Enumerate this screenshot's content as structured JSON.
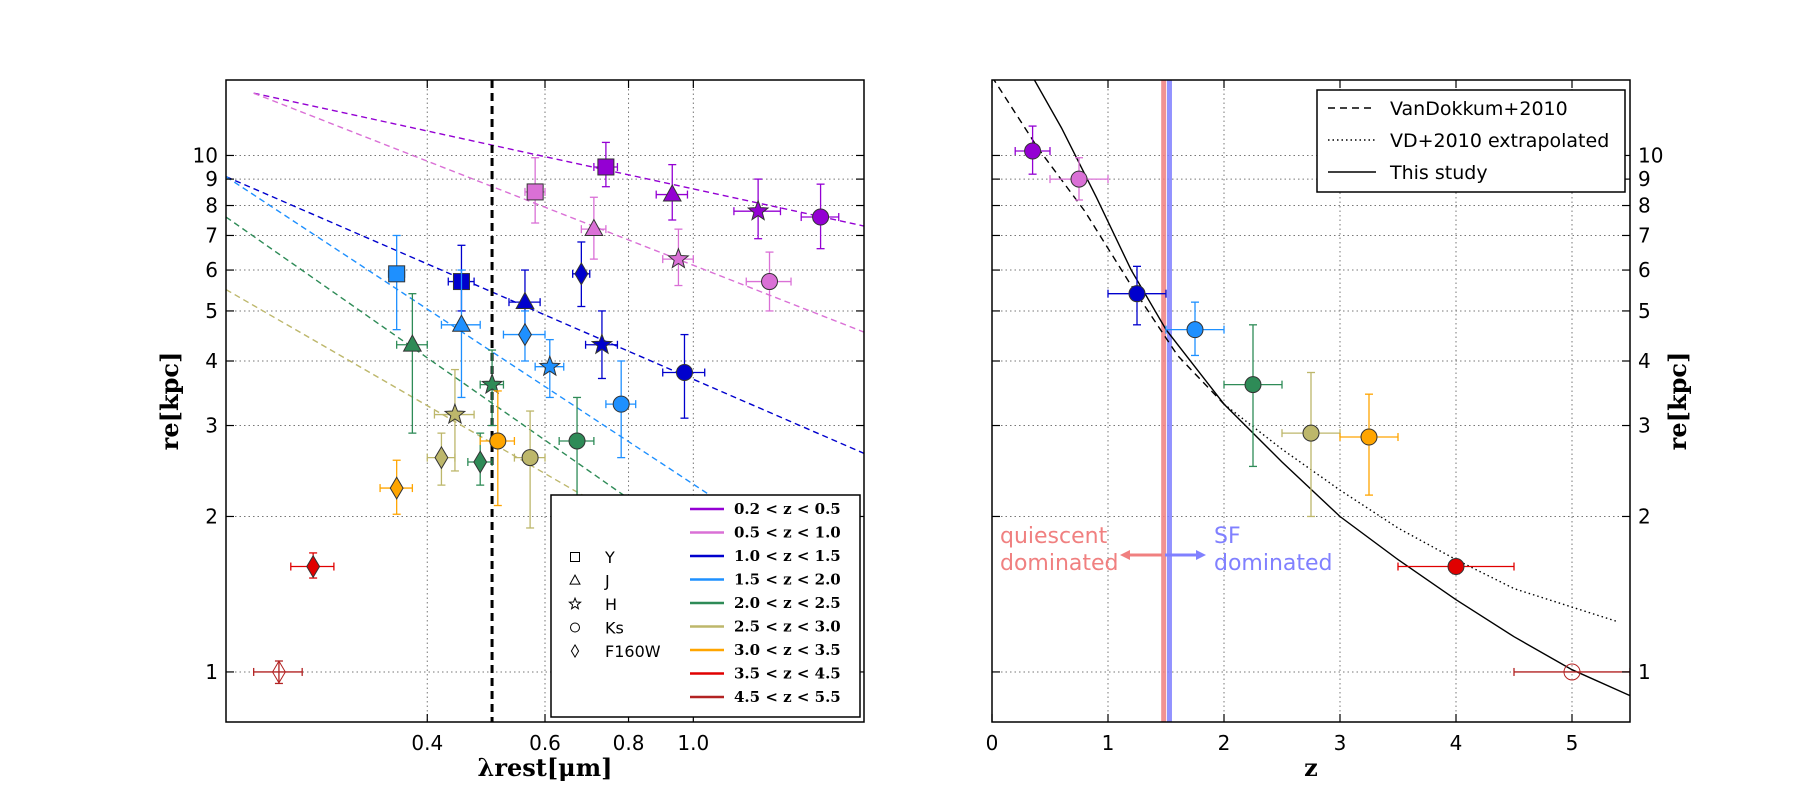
{
  "chart_data": [
    {
      "type": "scatter",
      "xlabel": "λrest[μm]",
      "ylabel": "re[kpc]",
      "xscale": "log",
      "yscale": "log",
      "xlim": [
        0.2,
        1.8
      ],
      "ylim": [
        0.8,
        14
      ],
      "xticks": [
        0.4,
        0.6,
        0.8,
        1.0
      ],
      "xtick_labels": [
        "0.4",
        "0.6",
        "0.8",
        "1.0"
      ],
      "yticks": [
        1,
        2,
        3,
        4,
        5,
        6,
        7,
        8,
        9,
        10
      ],
      "ytick_labels": [
        "1",
        "2",
        "3",
        "4",
        "5",
        "6",
        "7",
        "8",
        "9",
        "10"
      ],
      "grid": true,
      "vline": {
        "x": 0.5,
        "style": "dashed",
        "color": "#000000"
      },
      "bin_legend": {
        "placement": "lower-right",
        "entries": [
          {
            "label": "0.2 < z < 0.5",
            "color": "#9400d3"
          },
          {
            "label": "0.5 < z < 1.0",
            "color": "#da70d6"
          },
          {
            "label": "1.0 < z < 1.5",
            "color": "#0000cd"
          },
          {
            "label": "1.5 < z < 2.0",
            "color": "#1e90ff"
          },
          {
            "label": "2.0 < z < 2.5",
            "color": "#2e8b57"
          },
          {
            "label": "2.5 < z < 3.0",
            "color": "#bdb76b"
          },
          {
            "label": "3.0 < z < 3.5",
            "color": "#ffa500"
          },
          {
            "label": "3.5 < z < 4.5",
            "color": "#e00000"
          },
          {
            "label": "4.5 < z < 5.5",
            "color": "#b22222"
          }
        ]
      },
      "marker_legend": [
        {
          "label": "Y",
          "marker": "square"
        },
        {
          "label": "J",
          "marker": "triangle"
        },
        {
          "label": "H",
          "marker": "star"
        },
        {
          "label": "Ks",
          "marker": "circle"
        },
        {
          "label": "F160W",
          "marker": "diamond"
        }
      ],
      "fits": [
        {
          "color": "#9400d3",
          "x": [
            0.22,
            1.8
          ],
          "y": [
            13.2,
            7.3
          ]
        },
        {
          "color": "#da70d6",
          "x": [
            0.22,
            1.8
          ],
          "y": [
            13.2,
            4.55
          ]
        },
        {
          "color": "#0000cd",
          "x": [
            0.2,
            1.8
          ],
          "y": [
            9.1,
            2.65
          ]
        },
        {
          "color": "#1e90ff",
          "x": [
            0.2,
            1.15
          ],
          "y": [
            9.1,
            2.05
          ]
        },
        {
          "color": "#2e8b57",
          "x": [
            0.2,
            0.85
          ],
          "y": [
            7.6,
            2.05
          ]
        },
        {
          "color": "#bdb76b",
          "x": [
            0.2,
            0.75
          ],
          "y": [
            5.5,
            2.05
          ]
        }
      ],
      "points": [
        {
          "x": 0.74,
          "y": 9.5,
          "marker": "square",
          "color": "#9400d3",
          "xerr": 0.03,
          "yerr": [
            0.8,
            1.1
          ]
        },
        {
          "x": 0.93,
          "y": 8.4,
          "marker": "triangle",
          "color": "#9400d3",
          "xerr": 0.05,
          "yerr": [
            0.9,
            1.2
          ]
        },
        {
          "x": 1.25,
          "y": 7.8,
          "marker": "star",
          "color": "#9400d3",
          "xerr": 0.1,
          "yerr": [
            0.9,
            1.2
          ]
        },
        {
          "x": 1.55,
          "y": 7.6,
          "marker": "circle",
          "color": "#9400d3",
          "xerr": 0.1,
          "yerr": [
            1.0,
            1.2
          ]
        },
        {
          "x": 0.58,
          "y": 8.5,
          "marker": "square",
          "color": "#da70d6",
          "xerr": 0.02,
          "yerr": [
            1.1,
            1.4
          ]
        },
        {
          "x": 0.71,
          "y": 7.2,
          "marker": "triangle",
          "color": "#da70d6",
          "xerr": 0.03,
          "yerr": [
            0.9,
            1.1
          ]
        },
        {
          "x": 0.95,
          "y": 6.3,
          "marker": "star",
          "color": "#da70d6",
          "xerr": 0.05,
          "yerr": [
            0.7,
            0.9
          ]
        },
        {
          "x": 1.3,
          "y": 5.7,
          "marker": "circle",
          "color": "#da70d6",
          "xerr": 0.1,
          "yerr": [
            0.7,
            0.8
          ]
        },
        {
          "x": 0.45,
          "y": 5.7,
          "marker": "square",
          "color": "#0000cd",
          "xerr": 0.02,
          "yerr": [
            0.7,
            1.0
          ]
        },
        {
          "x": 0.56,
          "y": 5.2,
          "marker": "triangle",
          "color": "#0000cd",
          "xerr": 0.03,
          "yerr": [
            0.7,
            0.8
          ]
        },
        {
          "x": 0.68,
          "y": 5.9,
          "marker": "diamond",
          "color": "#0000cd",
          "xerr": 0.02,
          "yerr": [
            0.8,
            0.9
          ]
        },
        {
          "x": 0.73,
          "y": 4.3,
          "marker": "star",
          "color": "#0000cd",
          "xerr": 0.04,
          "yerr": [
            0.6,
            0.7
          ]
        },
        {
          "x": 0.97,
          "y": 3.8,
          "marker": "circle",
          "color": "#0000cd",
          "xerr": 0.07,
          "yerr": [
            0.7,
            0.7
          ]
        },
        {
          "x": 0.36,
          "y": 5.9,
          "marker": "square",
          "color": "#1e90ff",
          "xerr": 0.01,
          "yerr": [
            1.3,
            1.1
          ]
        },
        {
          "x": 0.45,
          "y": 4.7,
          "marker": "triangle",
          "color": "#1e90ff",
          "xerr": 0.03,
          "yerr": [
            1.3,
            1.3
          ]
        },
        {
          "x": 0.56,
          "y": 4.5,
          "marker": "diamond",
          "color": "#1e90ff",
          "xerr": 0.04,
          "yerr": [
            0.5,
            0.5
          ]
        },
        {
          "x": 0.61,
          "y": 3.9,
          "marker": "star",
          "color": "#1e90ff",
          "xerr": 0.03,
          "yerr": [
            0.5,
            0.5
          ]
        },
        {
          "x": 0.78,
          "y": 3.3,
          "marker": "circle",
          "color": "#1e90ff",
          "xerr": 0.04,
          "yerr": [
            0.7,
            0.7
          ]
        },
        {
          "x": 0.38,
          "y": 4.3,
          "marker": "triangle",
          "color": "#2e8b57",
          "xerr": 0.02,
          "yerr": [
            1.4,
            1.1
          ]
        },
        {
          "x": 0.5,
          "y": 3.6,
          "marker": "star",
          "color": "#2e8b57",
          "xerr": 0.02,
          "yerr": [
            0.6,
            0.6
          ]
        },
        {
          "x": 0.48,
          "y": 2.55,
          "marker": "diamond",
          "color": "#2e8b57",
          "xerr": 0.02,
          "yerr": [
            0.25,
            0.35
          ]
        },
        {
          "x": 0.67,
          "y": 2.8,
          "marker": "circle",
          "color": "#2e8b57",
          "xerr": 0.04,
          "yerr": [
            0.6,
            0.6
          ]
        },
        {
          "x": 0.44,
          "y": 3.15,
          "marker": "star",
          "color": "#bdb76b",
          "xerr": 0.03,
          "yerr": [
            0.7,
            0.7
          ]
        },
        {
          "x": 0.42,
          "y": 2.6,
          "marker": "diamond",
          "color": "#bdb76b",
          "xerr": 0.02,
          "yerr": [
            0.3,
            0.3
          ]
        },
        {
          "x": 0.57,
          "y": 2.6,
          "marker": "circle",
          "color": "#bdb76b",
          "xerr": 0.03,
          "yerr": [
            0.7,
            0.6
          ]
        },
        {
          "x": 0.36,
          "y": 2.27,
          "marker": "diamond",
          "color": "#ffa500",
          "xerr": 0.02,
          "yerr": [
            0.25,
            0.3
          ]
        },
        {
          "x": 0.51,
          "y": 2.8,
          "marker": "circle",
          "color": "#ffa500",
          "xerr": 0.03,
          "yerr": [
            0.7,
            0.7
          ]
        },
        {
          "x": 0.27,
          "y": 1.6,
          "marker": "diamond",
          "color": "#e00000",
          "xerr": 0.02,
          "yerr": [
            0.08,
            0.1
          ]
        },
        {
          "x": 0.24,
          "y": 1.0,
          "marker": "diamond",
          "color": "#b22222",
          "xerr": 0.02,
          "yerr": [
            0.05,
            0.05
          ],
          "hollow": true
        }
      ]
    },
    {
      "type": "scatter",
      "xlabel": "z",
      "ylabel": "re[kpc]",
      "yscale": "log",
      "xlim": [
        0,
        5.5
      ],
      "ylim": [
        0.8,
        14
      ],
      "xticks": [
        0,
        1,
        2,
        3,
        4,
        5
      ],
      "xtick_labels": [
        "0",
        "1",
        "2",
        "3",
        "4",
        "5"
      ],
      "yticks": [
        1,
        2,
        3,
        4,
        5,
        6,
        7,
        8,
        9,
        10
      ],
      "ytick_labels": [
        "1",
        "2",
        "3",
        "4",
        "5",
        "6",
        "7",
        "8",
        "9",
        "10"
      ],
      "grid": true,
      "legend": {
        "placement": "top-right",
        "entries": [
          {
            "label": "VanDokkum+2010",
            "style": "dashed"
          },
          {
            "label": "VD+2010 extrapolated",
            "style": "dotted"
          },
          {
            "label": "This study",
            "style": "solid"
          }
        ]
      },
      "vlines": [
        {
          "x": 1.48,
          "color": "#f08080"
        },
        {
          "x": 1.53,
          "color": "#8080ff"
        }
      ],
      "annotations": [
        {
          "text": "quiescent",
          "color": "#f08080"
        },
        {
          "text": "dominated",
          "color": "#f08080"
        },
        {
          "text": "SF",
          "color": "#8080ff"
        },
        {
          "text": "dominated",
          "color": "#8080ff"
        }
      ],
      "curves": [
        {
          "style": "dashed",
          "x": [
            0,
            0.4,
            0.8,
            1.2,
            1.6,
            2.0
          ],
          "y": [
            14.2,
            10.3,
            7.8,
            5.6,
            4.1,
            3.3
          ]
        },
        {
          "style": "dotted",
          "x": [
            2.0,
            2.5,
            3.0,
            3.5,
            4.0,
            4.5,
            5.4
          ],
          "y": [
            3.3,
            2.7,
            2.25,
            1.9,
            1.65,
            1.45,
            1.25
          ]
        },
        {
          "style": "solid",
          "x": [
            0.35,
            0.6,
            0.9,
            1.2,
            1.5,
            2.0,
            2.5,
            3.0,
            3.5,
            4.0,
            4.5,
            5.0,
            5.5
          ],
          "y": [
            14.2,
            11.3,
            8.3,
            6.0,
            4.6,
            3.3,
            2.55,
            2.0,
            1.65,
            1.38,
            1.17,
            1.01,
            0.9
          ]
        }
      ],
      "points": [
        {
          "x": 0.35,
          "y": 10.2,
          "color": "#9400d3",
          "xerr": 0.15,
          "yerr": [
            1.0,
            1.2
          ]
        },
        {
          "x": 0.75,
          "y": 9.0,
          "color": "#da70d6",
          "xerr": 0.25,
          "yerr": [
            0.8,
            0.9
          ]
        },
        {
          "x": 1.25,
          "y": 5.4,
          "color": "#0000cd",
          "xerr": 0.25,
          "yerr": [
            0.7,
            0.7
          ]
        },
        {
          "x": 1.75,
          "y": 4.6,
          "color": "#1e90ff",
          "xerr": 0.25,
          "yerr": [
            0.5,
            0.6
          ]
        },
        {
          "x": 2.25,
          "y": 3.6,
          "color": "#2e8b57",
          "xerr": 0.25,
          "yerr": [
            1.1,
            1.1
          ]
        },
        {
          "x": 2.75,
          "y": 2.9,
          "color": "#bdb76b",
          "xerr": 0.25,
          "yerr": [
            0.9,
            0.9
          ]
        },
        {
          "x": 3.25,
          "y": 2.85,
          "color": "#ffa500",
          "xerr": 0.25,
          "yerr": [
            0.65,
            0.6
          ]
        },
        {
          "x": 4.0,
          "y": 1.6,
          "color": "#e00000",
          "xerr": 0.5,
          "yerr": [
            0.05,
            0.05
          ]
        },
        {
          "x": 5.0,
          "y": 1.0,
          "color": "#b22222",
          "xerr": 0.5,
          "yerr": [
            0.0,
            0.0
          ],
          "hollow": true
        }
      ]
    }
  ]
}
